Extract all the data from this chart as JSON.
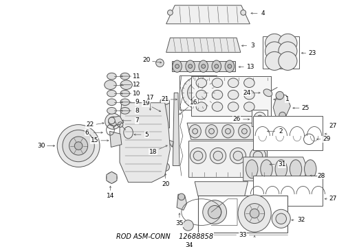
{
  "title": "ROD ASM-CONN",
  "part_number": "12688858",
  "bg": "#ffffff",
  "lc": "#555555",
  "tc": "#000000",
  "fw": 4.9,
  "fh": 3.6,
  "dpi": 100
}
